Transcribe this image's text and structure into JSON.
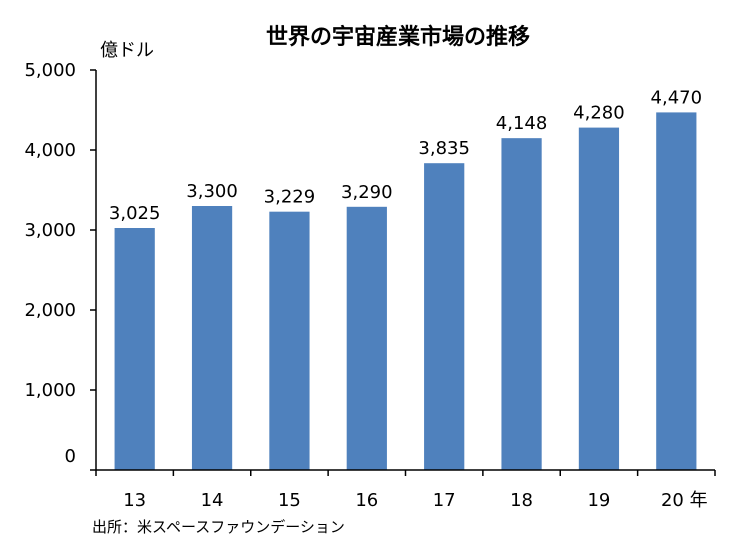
{
  "chart_data": {
    "type": "bar",
    "title": "世界の宇宙産業市場の推移",
    "ylabel": "億ドル",
    "xlabel": "",
    "categories": [
      "13",
      "14",
      "15",
      "16",
      "17",
      "18",
      "19",
      "20"
    ],
    "values": [
      3025,
      3300,
      3229,
      3290,
      3835,
      4148,
      4280,
      4470
    ],
    "data_labels": [
      "3,025",
      "3,300",
      "3,229",
      "3,290",
      "3,835",
      "4,148",
      "4,280",
      "4,470"
    ],
    "x_suffix": "年",
    "y_ticks": [
      "0",
      "1,000",
      "2,000",
      "3,000",
      "4,000",
      "5,000"
    ],
    "y_tick_values": [
      0,
      1000,
      2000,
      3000,
      4000,
      5000
    ],
    "ylim": [
      0,
      5000
    ],
    "grid": false,
    "legend": "none",
    "bar_color": "#4F81BD",
    "source": "出所：米スペースファウンデーション"
  }
}
